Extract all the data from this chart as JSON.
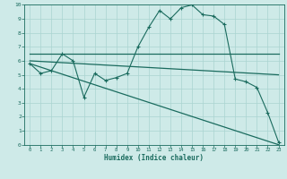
{
  "xlabel": "Humidex (Indice chaleur)",
  "background_color": "#ceeae8",
  "grid_color": "#aad4d0",
  "line_color": "#1a6b5e",
  "xlim": [
    -0.5,
    23.5
  ],
  "ylim": [
    0,
    10
  ],
  "xticks": [
    0,
    1,
    2,
    3,
    4,
    5,
    6,
    7,
    8,
    9,
    10,
    11,
    12,
    13,
    14,
    15,
    16,
    17,
    18,
    19,
    20,
    21,
    22,
    23
  ],
  "yticks": [
    0,
    1,
    2,
    3,
    4,
    5,
    6,
    7,
    8,
    9,
    10
  ],
  "line1_x": [
    0,
    1,
    2,
    3,
    4,
    5,
    6,
    7,
    8,
    9,
    10,
    11,
    12,
    13,
    14,
    15,
    16,
    17,
    18,
    19,
    20,
    21,
    22,
    23
  ],
  "line1_y": [
    5.8,
    5.1,
    5.3,
    6.5,
    6.0,
    3.4,
    5.1,
    4.6,
    4.8,
    5.1,
    7.0,
    8.4,
    9.6,
    9.0,
    9.8,
    10.0,
    9.3,
    9.2,
    8.6,
    4.7,
    4.5,
    4.1,
    2.3,
    0.2
  ],
  "line2_x": [
    0,
    3,
    10,
    18,
    18,
    23
  ],
  "line2_y": [
    6.5,
    6.5,
    6.5,
    6.5,
    6.5,
    6.5
  ],
  "line3_x": [
    0,
    23
  ],
  "line3_y": [
    6.0,
    5.0
  ],
  "line4_x": [
    0,
    23
  ],
  "line4_y": [
    5.8,
    0.0
  ]
}
